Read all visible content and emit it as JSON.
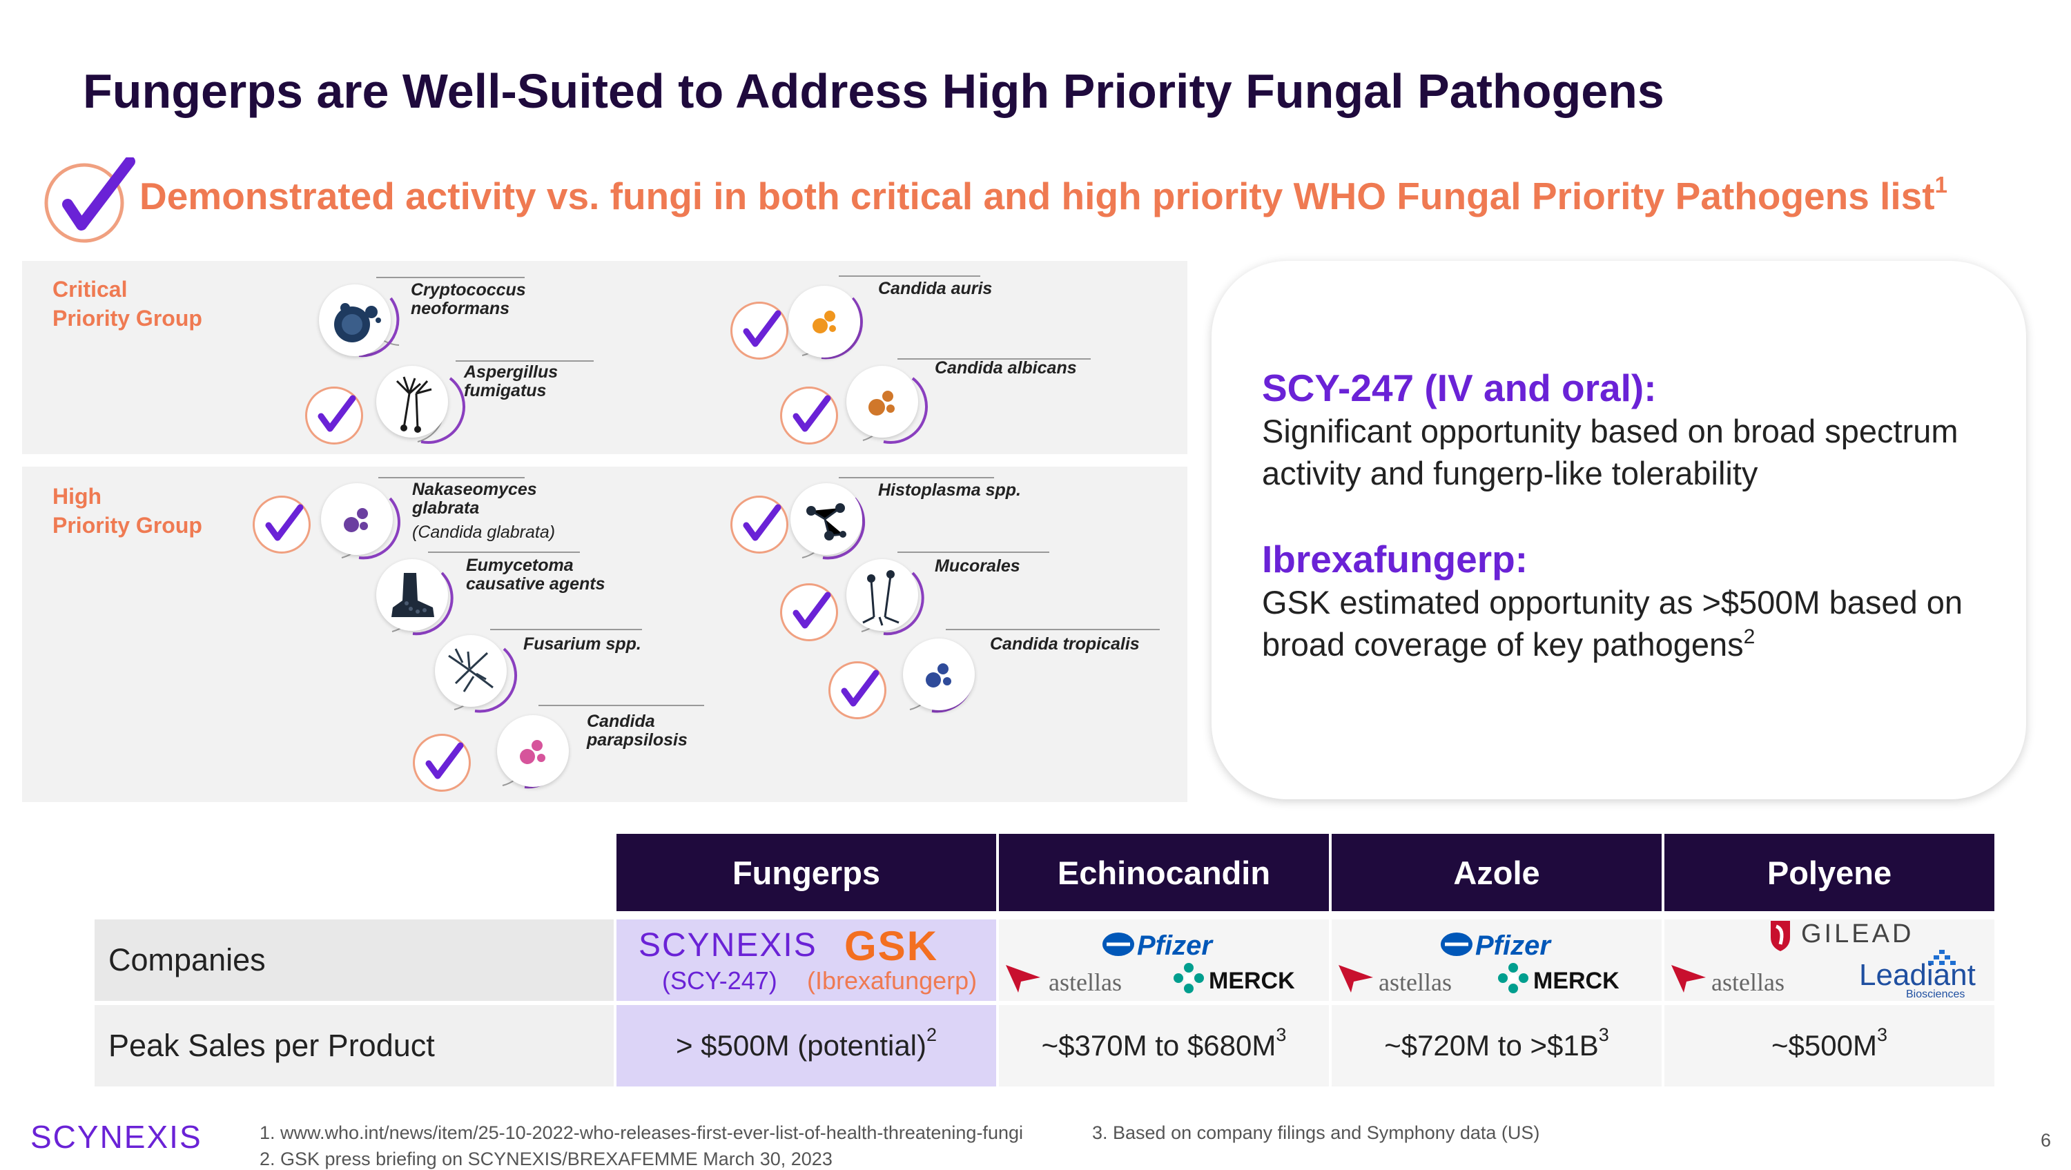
{
  "title": "Fungerps are Well-Suited to Address High Priority Fungal Pathogens",
  "subtitle": {
    "text": "Demonstrated activity vs. fungi in both critical and high priority WHO Fungal Priority Pathogens list",
    "sup": "1"
  },
  "groups": {
    "critical": {
      "label_line1": "Critical",
      "label_line2": "Priority Group"
    },
    "high": {
      "label_line1": "High",
      "label_line2": "Priority Group"
    }
  },
  "pathogens": {
    "crypto": {
      "l1": "Cryptococcus",
      "l2": "neoformans"
    },
    "aspergillus": {
      "l1": "Aspergillus",
      "l2": "fumigatus"
    },
    "auris": {
      "l1": "Candida auris"
    },
    "albicans": {
      "l1": "Candida albicans"
    },
    "nakaseomyces": {
      "l1": "Nakaseomyces",
      "l2": "glabrata",
      "l3": "(Candida glabrata)"
    },
    "histoplasma": {
      "l1": "Histoplasma spp."
    },
    "eumycetoma": {
      "l1": "Eumycetoma",
      "l2": "causative agents"
    },
    "mucorales": {
      "l1": "Mucorales"
    },
    "fusarium": {
      "l1": "Fusarium spp."
    },
    "tropicalis": {
      "l1": "Candida tropicalis"
    },
    "parapsilosis": {
      "l1": "Candida",
      "l2": "parapsilosis"
    }
  },
  "card": {
    "h1": "SCY-247 (IV and oral):",
    "p1": "Significant opportunity based on broad spectrum activity and fungerp-like tolerability",
    "h2": "Ibrexafungerp:",
    "p2": "GSK estimated opportunity as >$500M based on broad coverage of key pathogens",
    "p2_sup": "2"
  },
  "table": {
    "headers": [
      "Fungerps",
      "Echinocandin",
      "Azole",
      "Polyene"
    ],
    "row1_label": "Companies",
    "row2_label": "Peak Sales per Product",
    "companies": {
      "fungerps": {
        "logo1": "SCYNEXIS",
        "logo2": "GSK",
        "note1": "(SCY-247)",
        "note2": "(Ibrexafungerp)"
      },
      "echinocandin": {
        "a": "Pfizer",
        "b": "astellas",
        "c": "MERCK"
      },
      "azole": {
        "a": "Pfizer",
        "b": "astellas",
        "c": "MERCK"
      },
      "polyene": {
        "a": "GILEAD",
        "b": "astellas",
        "c": "Leadiant",
        "c_sub": "Biosciences"
      }
    },
    "sales": [
      {
        "text": "> $500M (potential)",
        "sup": "2"
      },
      {
        "text": "~$370M to $680M",
        "sup": "3"
      },
      {
        "text": "~$720M to >$1B",
        "sup": "3"
      },
      {
        "text": "~$500M",
        "sup": "3"
      }
    ]
  },
  "footer": {
    "logo": "SCYNEXIS",
    "note1": "1. www.who.int/news/item/25-10-2022-who-releases-first-ever-list-of-health-threatening-fungi",
    "note2": "2. GSK press briefing on SCYNEXIS/BREXAFEMME March 30, 2023",
    "note3": "3. Based on company filings and Symphony data (US)",
    "page": "6"
  },
  "colors": {
    "title": "#1f0a3d",
    "accent": "#ef7a52",
    "purple": "#6a22d6",
    "header_bg": "#1f0a3d",
    "highlight": "#dcd4f7"
  }
}
